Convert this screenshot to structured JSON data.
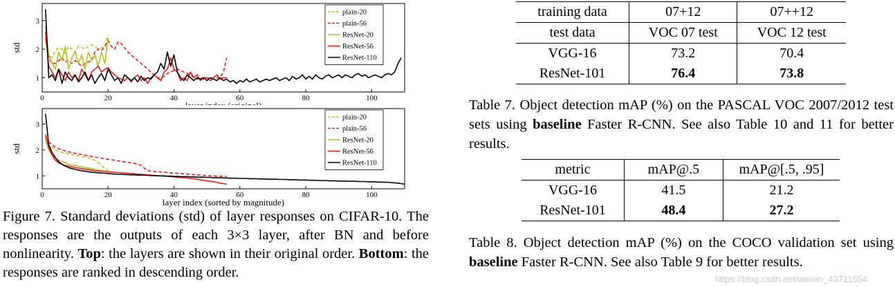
{
  "figure": {
    "charts": [
      {
        "type": "line",
        "xlabel": "layer index (original)",
        "ylabel": "std",
        "x_ticks": [
          "0",
          "20",
          "40",
          "60",
          "80",
          "100"
        ],
        "y_ticks": [
          "1",
          "2",
          "3"
        ],
        "xlim": [
          0,
          110
        ],
        "ylim": [
          0.5,
          3.6
        ],
        "legend_position": "top-right",
        "series": [
          {
            "name": "plain-20",
            "color": "#c3c41a",
            "dash": true,
            "y": [
              2.3,
              1.8,
              1.7,
              1.95,
              2.05,
              2.0,
              1.85,
              2.1,
              2.0,
              1.9,
              2.1,
              2.05,
              2.0,
              2.1,
              2.15,
              2.1,
              2.0,
              2.05,
              2.1,
              2.5
            ]
          },
          {
            "name": "plain-56",
            "color": "#ee1b1b",
            "dash": true,
            "y": [
              2.4,
              1.7,
              1.5,
              1.5,
              1.6,
              1.7,
              1.55,
              1.6,
              1.5,
              1.6,
              1.5,
              1.4,
              1.5,
              1.55,
              1.6,
              1.9,
              2.0,
              1.95,
              2.1,
              2.3,
              2.1,
              2.0,
              2.25,
              2.2,
              2.05,
              1.9,
              1.8,
              1.7,
              1.6,
              1.5,
              1.4,
              1.3,
              1.2,
              1.1,
              1.0,
              1.0,
              1.05,
              1.15,
              1.2,
              1.25,
              1.3,
              1.25,
              1.2,
              1.15,
              1.1,
              1.0,
              0.95,
              1.0,
              0.95,
              1.0,
              0.95,
              1.0,
              1.0,
              1.0,
              1.2,
              1.7
            ]
          },
          {
            "name": "ResNet-20",
            "color": "#b0c419",
            "dash": false,
            "y": [
              2.8,
              1.8,
              1.5,
              1.3,
              1.9,
              1.6,
              2.1,
              1.3,
              1.7,
              1.9,
              1.5,
              1.8,
              1.3,
              1.9,
              1.6,
              1.8,
              1.4,
              1.9,
              1.5,
              2.4
            ]
          },
          {
            "name": "ResNet-56",
            "color": "#ee1b1b",
            "dash": false,
            "y": [
              2.6,
              1.4,
              1.2,
              1.0,
              1.3,
              1.1,
              0.9,
              1.2,
              1.0,
              1.1,
              0.9,
              1.3,
              1.1,
              0.9,
              1.2,
              1.3,
              1.4,
              1.2,
              1.3,
              1.35,
              1.2,
              1.1,
              1.0,
              0.95,
              0.9,
              1.0,
              0.85,
              1.0,
              1.1,
              0.9,
              1.0,
              0.8,
              1.0,
              1.1,
              1.0,
              0.9,
              1.2,
              1.3,
              1.7,
              1.3,
              1.2,
              0.9,
              1.0,
              0.9,
              1.2,
              1.0,
              1.1,
              0.9,
              1.0,
              1.0,
              0.9,
              1.0,
              1.1,
              0.95,
              1.0,
              1.0
            ]
          },
          {
            "name": "ResNet-110",
            "color": "#000000",
            "dash": false,
            "y": [
              3.4,
              1.0,
              1.1,
              0.9,
              1.3,
              0.8,
              1.2,
              1.0,
              0.9,
              1.1,
              0.85,
              1.0,
              1.2,
              0.9,
              1.1,
              0.8,
              1.0,
              1.15,
              0.9,
              1.3,
              1.1,
              0.9,
              1.0,
              0.8,
              1.1,
              1.0,
              0.9,
              1.0,
              0.85,
              1.05,
              0.9,
              1.0,
              0.95,
              1.1,
              1.2,
              1.5,
              1.3,
              1.9,
              1.4,
              1.8,
              1.2,
              1.0,
              0.9,
              1.1,
              1.0,
              0.9,
              1.0,
              0.95,
              1.0,
              0.9,
              1.0,
              0.95,
              0.9,
              1.0,
              0.9,
              0.95,
              0.85,
              0.9,
              0.8,
              0.9,
              0.85,
              0.95,
              0.85,
              0.9,
              0.95,
              0.85,
              0.9,
              0.95,
              0.9,
              0.95,
              1.0,
              0.9,
              0.95,
              1.0,
              0.9,
              1.05,
              0.95,
              1.0,
              1.1,
              0.95,
              1.05,
              0.95,
              1.1,
              1.0,
              0.95,
              1.05,
              1.1,
              1.0,
              1.05,
              1.1,
              1.0,
              1.1,
              1.05,
              1.0,
              1.1,
              1.15,
              1.05,
              1.1,
              1.0,
              1.05,
              1.1,
              1.05,
              1.0,
              1.1,
              1.15,
              1.1,
              1.2,
              1.5,
              1.7
            ]
          }
        ]
      },
      {
        "type": "line",
        "xlabel": "layer index (sorted by magnitude)",
        "ylabel": "std",
        "x_ticks": [
          "0",
          "20",
          "40",
          "60",
          "80",
          "100"
        ],
        "y_ticks": [
          "1",
          "2",
          "3"
        ],
        "xlim": [
          0,
          110
        ],
        "ylim": [
          0.5,
          3.6
        ],
        "legend_position": "top-right",
        "series": [
          {
            "name": "plain-20",
            "color": "#c3c41a",
            "dash": true,
            "y": [
              2.5,
              2.2,
              2.1,
              2.0,
              1.95,
              1.9,
              1.88,
              1.85,
              1.82,
              1.8,
              1.78,
              1.75,
              1.72,
              1.7,
              1.65,
              1.6,
              1.5,
              1.4,
              1.3,
              1.2
            ]
          },
          {
            "name": "plain-56",
            "color": "#ee1b1b",
            "dash": true,
            "y": [
              2.5,
              2.3,
              2.2,
              2.1,
              2.05,
              2.0,
              1.97,
              1.93,
              1.9,
              1.87,
              1.85,
              1.82,
              1.8,
              1.78,
              1.75,
              1.73,
              1.7,
              1.68,
              1.66,
              1.64,
              1.62,
              1.6,
              1.58,
              1.56,
              1.54,
              1.52,
              1.5,
              1.48,
              1.46,
              1.4,
              1.3,
              1.2,
              1.18,
              1.17,
              1.16,
              1.15,
              1.14,
              1.13,
              1.12,
              1.11,
              1.1,
              1.09,
              1.08,
              1.07,
              1.06,
              1.05,
              1.04,
              1.03,
              1.02,
              1.01,
              1.0,
              1.0,
              0.99,
              0.99,
              0.98,
              0.98
            ]
          },
          {
            "name": "ResNet-20",
            "color": "#b0c419",
            "dash": false,
            "y": [
              2.4,
              2.0,
              1.8,
              1.7,
              1.6,
              1.55,
              1.5,
              1.45,
              1.42,
              1.4,
              1.37,
              1.35,
              1.32,
              1.3,
              1.28,
              1.25,
              1.22,
              1.2,
              1.18,
              1.15
            ]
          },
          {
            "name": "ResNet-56",
            "color": "#ee1b1b",
            "dash": false,
            "y": [
              2.6,
              2.1,
              1.8,
              1.6,
              1.5,
              1.45,
              1.4,
              1.38,
              1.35,
              1.32,
              1.3,
              1.28,
              1.26,
              1.24,
              1.22,
              1.2,
              1.19,
              1.18,
              1.17,
              1.16,
              1.15,
              1.14,
              1.13,
              1.12,
              1.11,
              1.1,
              1.09,
              1.08,
              1.07,
              1.06,
              1.05,
              1.04,
              1.03,
              1.02,
              1.01,
              1.0,
              0.99,
              0.98,
              0.97,
              0.96,
              0.95,
              0.94,
              0.93,
              0.92,
              0.9,
              0.89,
              0.87,
              0.85,
              0.83,
              0.81,
              0.79,
              0.77,
              0.75,
              0.72,
              0.7,
              0.68
            ]
          },
          {
            "name": "ResNet-110",
            "color": "#000000",
            "dash": false,
            "y": [
              3.4,
              2.2,
              1.9,
              1.7,
              1.55,
              1.45,
              1.38,
              1.32,
              1.28,
              1.25,
              1.22,
              1.2,
              1.18,
              1.16,
              1.14,
              1.13,
              1.12,
              1.11,
              1.1,
              1.09,
              1.08,
              1.07,
              1.06,
              1.06,
              1.05,
              1.05,
              1.04,
              1.04,
              1.03,
              1.03,
              1.02,
              1.02,
              1.01,
              1.01,
              1.0,
              1.0,
              1.0,
              0.99,
              0.99,
              0.98,
              0.98,
              0.97,
              0.97,
              0.97,
              0.96,
              0.96,
              0.95,
              0.95,
              0.95,
              0.94,
              0.94,
              0.93,
              0.93,
              0.93,
              0.92,
              0.92,
              0.91,
              0.91,
              0.91,
              0.9,
              0.9,
              0.9,
              0.89,
              0.89,
              0.89,
              0.88,
              0.88,
              0.88,
              0.87,
              0.87,
              0.87,
              0.86,
              0.86,
              0.86,
              0.85,
              0.85,
              0.85,
              0.84,
              0.84,
              0.84,
              0.83,
              0.83,
              0.83,
              0.82,
              0.82,
              0.82,
              0.81,
              0.81,
              0.81,
              0.8,
              0.8,
              0.8,
              0.79,
              0.79,
              0.79,
              0.78,
              0.78,
              0.78,
              0.77,
              0.77,
              0.77,
              0.76,
              0.76,
              0.75,
              0.75,
              0.74,
              0.73,
              0.72,
              0.7,
              0.68
            ]
          }
        ]
      }
    ],
    "caption_prefix": "Figure 7. Standard deviations (std) of layer responses on CIFAR-10. The responses are the outputs of each 3×3 layer, after BN and before nonlinearity.",
    "caption_top_label": "Top",
    "caption_top_text": ": the layers are shown in their original order.",
    "caption_bottom_label": "Bottom",
    "caption_bottom_text": ": the responses are ranked in descending order."
  },
  "table7": {
    "header_rows": [
      [
        "training data",
        "07+12",
        "07++12"
      ],
      [
        "test data",
        "VOC 07 test",
        "VOC 12 test"
      ]
    ],
    "rows": [
      {
        "model": "VGG-16",
        "a": "73.2",
        "b": "70.4",
        "bold": false
      },
      {
        "model": "ResNet-101",
        "a": "76.4",
        "b": "73.8",
        "bold": true
      }
    ],
    "caption_prefix": "Table 7. Object detection mAP (%) on the PASCAL VOC 2007/2012 test sets using ",
    "caption_bold": "baseline",
    "caption_suffix": " Faster R-CNN. See also Table 10 and 11 for better results."
  },
  "table8": {
    "header": [
      "metric",
      "mAP@.5",
      "mAP@[.5, .95]"
    ],
    "rows": [
      {
        "model": "VGG-16",
        "a": "41.5",
        "b": "21.2",
        "bold": false
      },
      {
        "model": "ResNet-101",
        "a": "48.4",
        "b": "27.2",
        "bold": true
      }
    ],
    "caption_prefix": "Table 8. Object detection mAP (%) on the COCO validation set using ",
    "caption_bold": "baseline",
    "caption_suffix": " Faster R-CNN. See also Table 9 for better results."
  },
  "watermark": "https://blog.csdn.net/weixin_43711554"
}
